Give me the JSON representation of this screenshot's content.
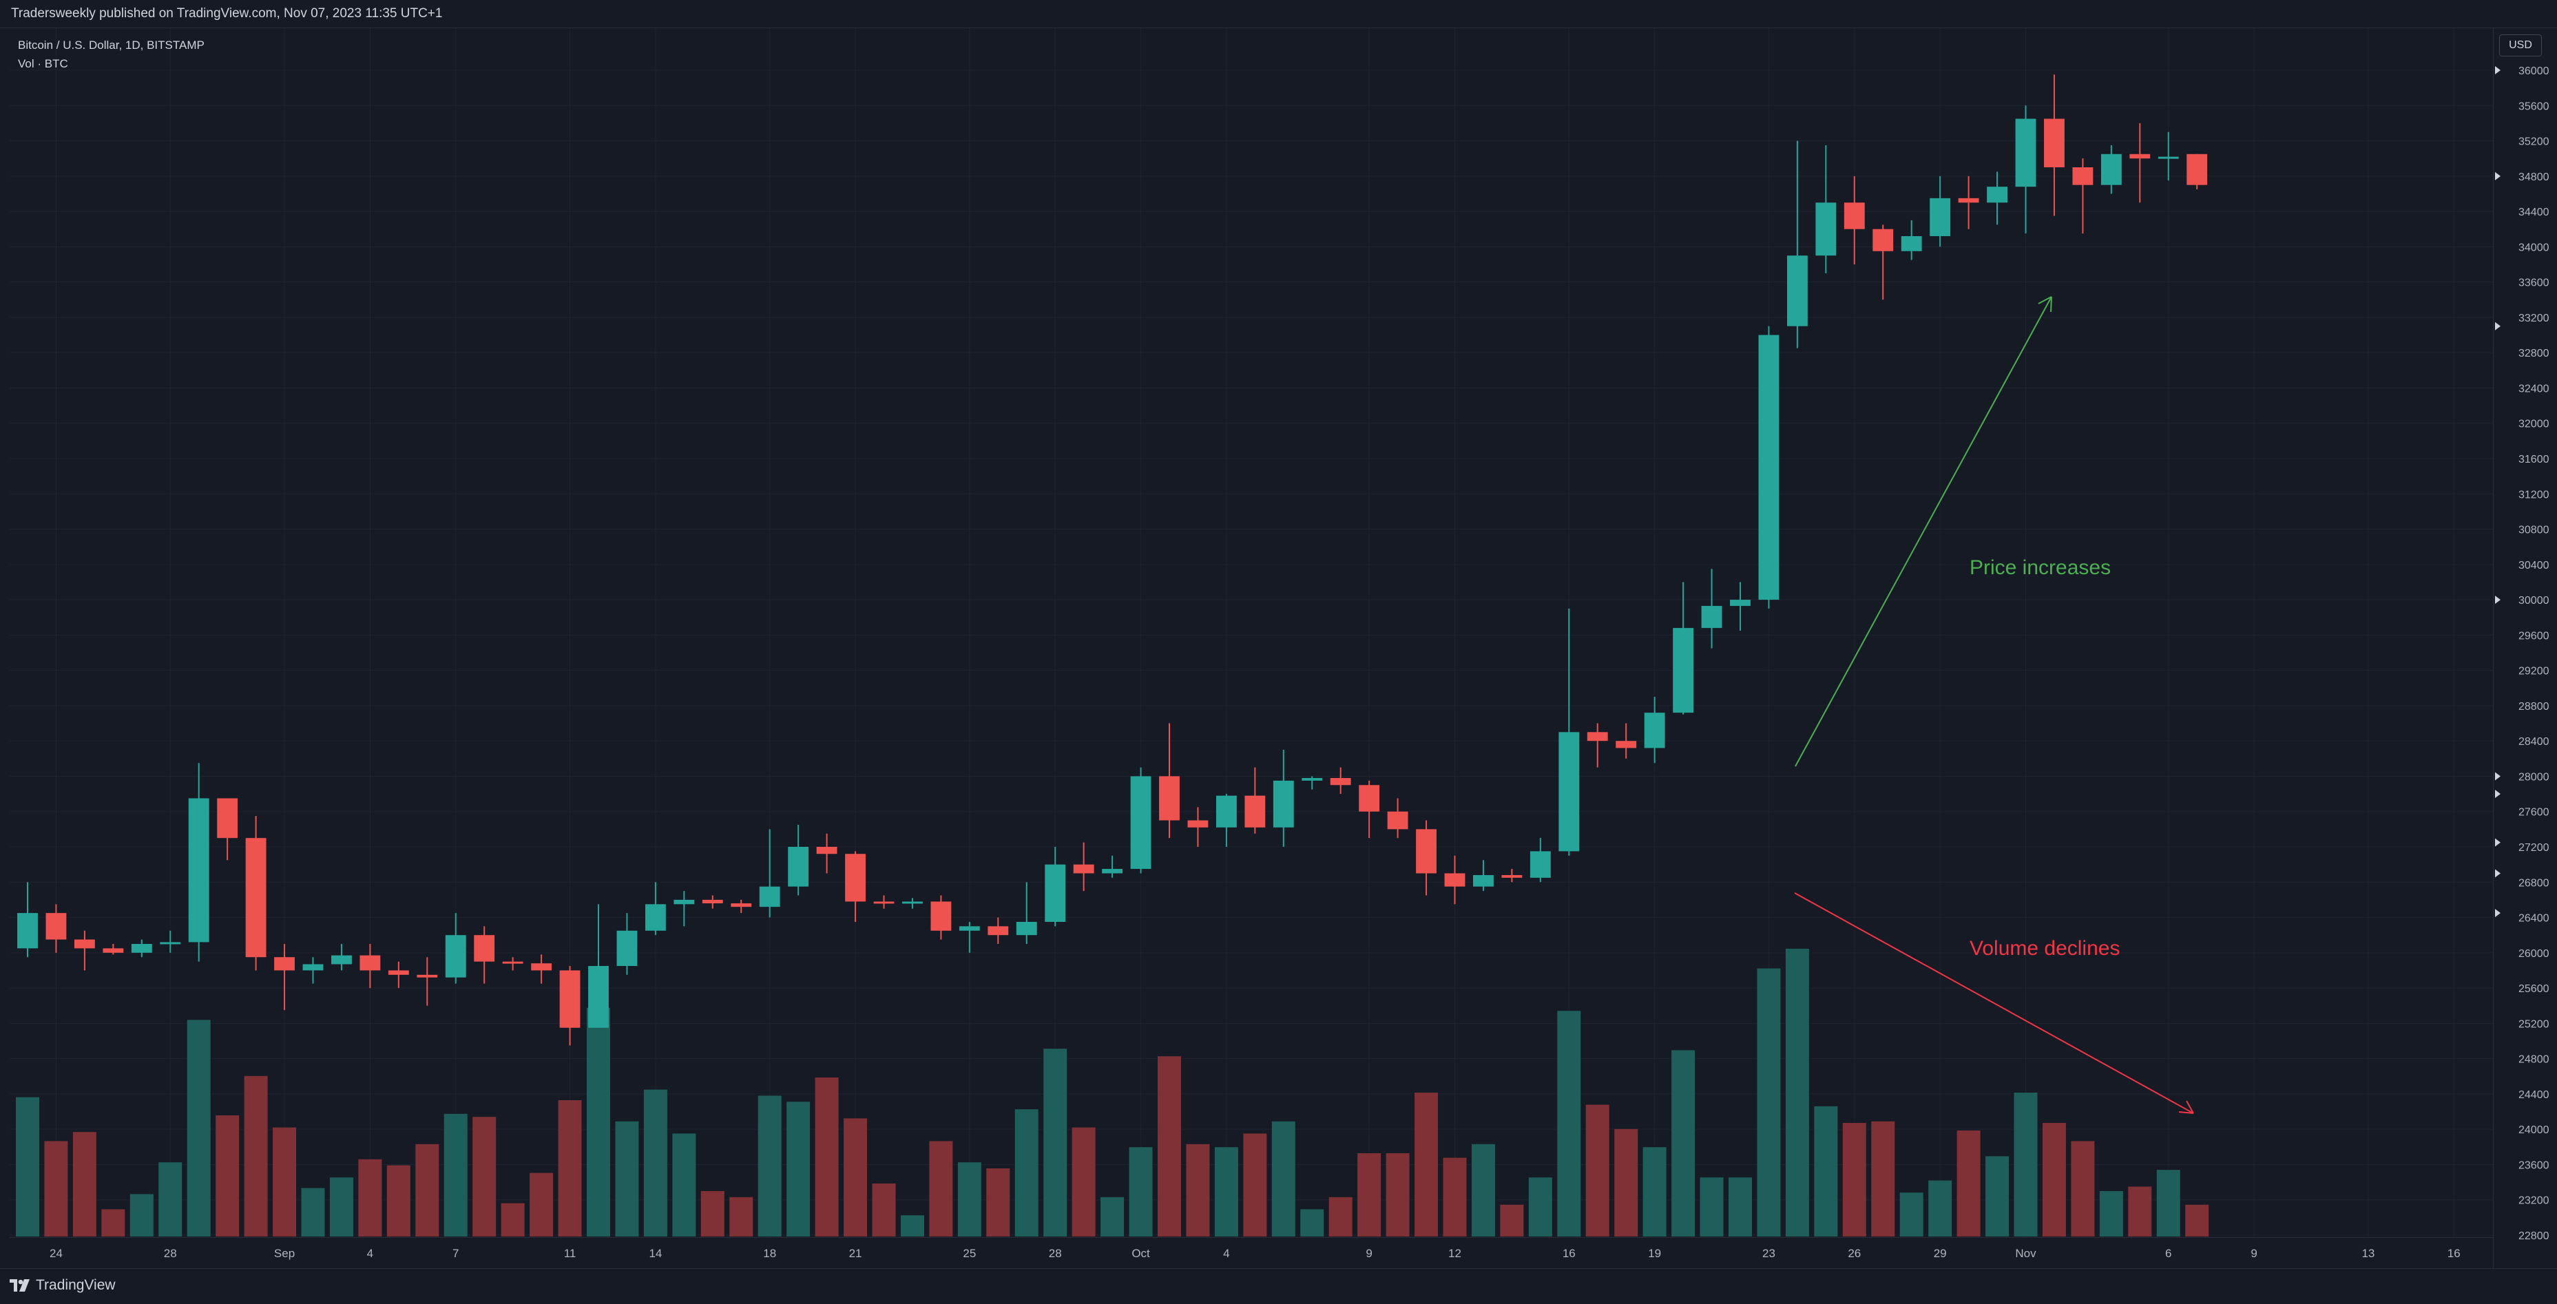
{
  "header": {
    "publisher_line": "Tradersweekly published on TradingView.com, Nov 07, 2023 11:35 UTC+1"
  },
  "symbol": {
    "title": "Bitcoin / U.S. Dollar, 1D, BITSTAMP",
    "volume_label": "Vol · BTC"
  },
  "currency_button": "USD",
  "footer": {
    "logo_text": "TradingView"
  },
  "colors": {
    "background": "#161a25",
    "up": "#26a69a",
    "down": "#ef5350",
    "volume_up": "#1e5f5b",
    "volume_down": "#7f3135",
    "grid": "#1f2330",
    "price_arrow": "#4caf50",
    "volume_arrow": "#f23645"
  },
  "annotations": [
    {
      "text": "Price increases",
      "color": "#4caf50"
    },
    {
      "text": "Volume declines",
      "color": "#f23645"
    }
  ],
  "chart_data": {
    "type": "candlestick",
    "title": "Bitcoin / U.S. Dollar, 1D, BITSTAMP",
    "y_tick_labels": [
      "22800",
      "23200",
      "23600",
      "24000",
      "24400",
      "24800",
      "25200",
      "25600",
      "26000",
      "26400",
      "26800",
      "27200",
      "27600",
      "28000",
      "28400",
      "28800",
      "29200",
      "29600",
      "30000",
      "30400",
      "30800",
      "31200",
      "31600",
      "32000",
      "32400",
      "32800",
      "33200",
      "33600",
      "34000",
      "34400",
      "34800",
      "35200",
      "35600",
      "36000"
    ],
    "ylim": [
      22800,
      36000
    ],
    "volume_max": 10000,
    "x_tick_labels": [
      {
        "label": "24",
        "date": "2023-08-24"
      },
      {
        "label": "28",
        "date": "2023-08-28"
      },
      {
        "label": "Sep",
        "date": "2023-09-01"
      },
      {
        "label": "4",
        "date": "2023-09-04"
      },
      {
        "label": "7",
        "date": "2023-09-07"
      },
      {
        "label": "11",
        "date": "2023-09-11"
      },
      {
        "label": "14",
        "date": "2023-09-14"
      },
      {
        "label": "18",
        "date": "2023-09-18"
      },
      {
        "label": "21",
        "date": "2023-09-21"
      },
      {
        "label": "25",
        "date": "2023-09-25"
      },
      {
        "label": "28",
        "date": "2023-09-28"
      },
      {
        "label": "Oct",
        "date": "2023-10-01"
      },
      {
        "label": "4",
        "date": "2023-10-04"
      },
      {
        "label": "9",
        "date": "2023-10-09"
      },
      {
        "label": "12",
        "date": "2023-10-12"
      },
      {
        "label": "16",
        "date": "2023-10-16"
      },
      {
        "label": "19",
        "date": "2023-10-19"
      },
      {
        "label": "23",
        "date": "2023-10-23"
      },
      {
        "label": "26",
        "date": "2023-10-26"
      },
      {
        "label": "29",
        "date": "2023-10-29"
      },
      {
        "label": "Nov",
        "date": "2023-11-01"
      },
      {
        "label": "6",
        "date": "2023-11-06"
      },
      {
        "label": "9",
        "date": "2023-11-09"
      },
      {
        "label": "13",
        "date": "2023-11-13"
      },
      {
        "label": "16",
        "date": "2023-11-16"
      }
    ],
    "candles": [
      {
        "date": "2023-08-23",
        "open": 26050,
        "high": 26800,
        "low": 25950,
        "close": 26450,
        "volume": 4600
      },
      {
        "date": "2023-08-24",
        "open": 26450,
        "high": 26550,
        "low": 26000,
        "close": 26150,
        "volume": 3150
      },
      {
        "date": "2023-08-25",
        "open": 26150,
        "high": 26250,
        "low": 25800,
        "close": 26050,
        "volume": 3450
      },
      {
        "date": "2023-08-26",
        "open": 26050,
        "high": 26100,
        "low": 25980,
        "close": 26000,
        "volume": 900
      },
      {
        "date": "2023-08-27",
        "open": 26000,
        "high": 26150,
        "low": 25950,
        "close": 26100,
        "volume": 1400
      },
      {
        "date": "2023-08-28",
        "open": 26100,
        "high": 26250,
        "low": 26000,
        "close": 26120,
        "volume": 2450
      },
      {
        "date": "2023-08-29",
        "open": 26120,
        "high": 28150,
        "low": 25900,
        "close": 27750,
        "volume": 7150
      },
      {
        "date": "2023-08-30",
        "open": 27750,
        "high": 27750,
        "low": 27050,
        "close": 27300,
        "volume": 4000
      },
      {
        "date": "2023-08-31",
        "open": 27300,
        "high": 27550,
        "low": 25800,
        "close": 25950,
        "volume": 5300
      },
      {
        "date": "2023-09-01",
        "open": 25950,
        "high": 26100,
        "low": 25350,
        "close": 25800,
        "volume": 3600
      },
      {
        "date": "2023-09-02",
        "open": 25800,
        "high": 25950,
        "low": 25650,
        "close": 25870,
        "volume": 1600
      },
      {
        "date": "2023-09-03",
        "open": 25870,
        "high": 26100,
        "low": 25800,
        "close": 25970,
        "volume": 1950
      },
      {
        "date": "2023-09-04",
        "open": 25970,
        "high": 26100,
        "low": 25600,
        "close": 25800,
        "volume": 2550
      },
      {
        "date": "2023-09-05",
        "open": 25800,
        "high": 25900,
        "low": 25600,
        "close": 25750,
        "volume": 2350
      },
      {
        "date": "2023-09-06",
        "open": 25750,
        "high": 25950,
        "low": 25400,
        "close": 25720,
        "volume": 3050
      },
      {
        "date": "2023-09-07",
        "open": 25720,
        "high": 26450,
        "low": 25650,
        "close": 26200,
        "volume": 4050
      },
      {
        "date": "2023-09-08",
        "open": 26200,
        "high": 26300,
        "low": 25650,
        "close": 25900,
        "volume": 3950
      },
      {
        "date": "2023-09-09",
        "open": 25900,
        "high": 25950,
        "low": 25800,
        "close": 25880,
        "volume": 1100
      },
      {
        "date": "2023-09-10",
        "open": 25880,
        "high": 25980,
        "low": 25650,
        "close": 25800,
        "volume": 2100
      },
      {
        "date": "2023-09-11",
        "open": 25800,
        "high": 25850,
        "low": 24950,
        "close": 25150,
        "volume": 4500
      },
      {
        "date": "2023-09-12",
        "open": 25150,
        "high": 26550,
        "low": 25150,
        "close": 25850,
        "volume": 7550
      },
      {
        "date": "2023-09-13",
        "open": 25850,
        "high": 26450,
        "low": 25750,
        "close": 26250,
        "volume": 3800
      },
      {
        "date": "2023-09-14",
        "open": 26250,
        "high": 26800,
        "low": 26200,
        "close": 26550,
        "volume": 4850
      },
      {
        "date": "2023-09-15",
        "open": 26550,
        "high": 26700,
        "low": 26300,
        "close": 26600,
        "volume": 3400
      },
      {
        "date": "2023-09-16",
        "open": 26600,
        "high": 26650,
        "low": 26500,
        "close": 26560,
        "volume": 1500
      },
      {
        "date": "2023-09-17",
        "open": 26560,
        "high": 26600,
        "low": 26450,
        "close": 26520,
        "volume": 1300
      },
      {
        "date": "2023-09-18",
        "open": 26520,
        "high": 27400,
        "low": 26400,
        "close": 26750,
        "volume": 4650
      },
      {
        "date": "2023-09-19",
        "open": 26750,
        "high": 27450,
        "low": 26650,
        "close": 27200,
        "volume": 4450
      },
      {
        "date": "2023-09-20",
        "open": 27200,
        "high": 27350,
        "low": 26900,
        "close": 27120,
        "volume": 5250
      },
      {
        "date": "2023-09-21",
        "open": 27120,
        "high": 27150,
        "low": 26350,
        "close": 26580,
        "volume": 3900
      },
      {
        "date": "2023-09-22",
        "open": 26580,
        "high": 26650,
        "low": 26500,
        "close": 26570,
        "volume": 1750
      },
      {
        "date": "2023-09-23",
        "open": 26570,
        "high": 26620,
        "low": 26500,
        "close": 26580,
        "volume": 700
      },
      {
        "date": "2023-09-24",
        "open": 26580,
        "high": 26650,
        "low": 26150,
        "close": 26250,
        "volume": 3150
      },
      {
        "date": "2023-09-25",
        "open": 26250,
        "high": 26350,
        "low": 26000,
        "close": 26300,
        "volume": 2450
      },
      {
        "date": "2023-09-26",
        "open": 26300,
        "high": 26400,
        "low": 26100,
        "close": 26200,
        "volume": 2250
      },
      {
        "date": "2023-09-27",
        "open": 26200,
        "high": 26800,
        "low": 26100,
        "close": 26350,
        "volume": 4200
      },
      {
        "date": "2023-09-28",
        "open": 26350,
        "high": 27200,
        "low": 26300,
        "close": 27000,
        "volume": 6200
      },
      {
        "date": "2023-09-29",
        "open": 27000,
        "high": 27250,
        "low": 26700,
        "close": 26900,
        "volume": 3600
      },
      {
        "date": "2023-09-30",
        "open": 26900,
        "high": 27100,
        "low": 26850,
        "close": 26950,
        "volume": 1300
      },
      {
        "date": "2023-10-01",
        "open": 26950,
        "high": 28100,
        "low": 26900,
        "close": 28000,
        "volume": 2950
      },
      {
        "date": "2023-10-02",
        "open": 28000,
        "high": 28600,
        "low": 27300,
        "close": 27500,
        "volume": 5950
      },
      {
        "date": "2023-10-03",
        "open": 27500,
        "high": 27650,
        "low": 27200,
        "close": 27420,
        "volume": 3050
      },
      {
        "date": "2023-10-04",
        "open": 27420,
        "high": 27800,
        "low": 27200,
        "close": 27780,
        "volume": 2950
      },
      {
        "date": "2023-10-05",
        "open": 27780,
        "high": 28100,
        "low": 27350,
        "close": 27420,
        "volume": 3400
      },
      {
        "date": "2023-10-06",
        "open": 27420,
        "high": 28300,
        "low": 27200,
        "close": 27950,
        "volume": 3800
      },
      {
        "date": "2023-10-07",
        "open": 27950,
        "high": 28000,
        "low": 27850,
        "close": 27980,
        "volume": 900
      },
      {
        "date": "2023-10-08",
        "open": 27980,
        "high": 28100,
        "low": 27800,
        "close": 27900,
        "volume": 1300
      },
      {
        "date": "2023-10-09",
        "open": 27900,
        "high": 27950,
        "low": 27300,
        "close": 27600,
        "volume": 2750
      },
      {
        "date": "2023-10-10",
        "open": 27600,
        "high": 27750,
        "low": 27300,
        "close": 27400,
        "volume": 2750
      },
      {
        "date": "2023-10-11",
        "open": 27400,
        "high": 27500,
        "low": 26650,
        "close": 26900,
        "volume": 4750
      },
      {
        "date": "2023-10-12",
        "open": 26900,
        "high": 27100,
        "low": 26550,
        "close": 26750,
        "volume": 2600
      },
      {
        "date": "2023-10-13",
        "open": 26750,
        "high": 27050,
        "low": 26700,
        "close": 26880,
        "volume": 3050
      },
      {
        "date": "2023-10-14",
        "open": 26880,
        "high": 26950,
        "low": 26800,
        "close": 26850,
        "volume": 1050
      },
      {
        "date": "2023-10-15",
        "open": 26850,
        "high": 27300,
        "low": 26800,
        "close": 27150,
        "volume": 1950
      },
      {
        "date": "2023-10-16",
        "open": 27150,
        "high": 29900,
        "low": 27100,
        "close": 28500,
        "volume": 7450
      },
      {
        "date": "2023-10-17",
        "open": 28500,
        "high": 28600,
        "low": 28100,
        "close": 28400,
        "volume": 4350
      },
      {
        "date": "2023-10-18",
        "open": 28400,
        "high": 28600,
        "low": 28200,
        "close": 28320,
        "volume": 3550
      },
      {
        "date": "2023-10-19",
        "open": 28320,
        "high": 28900,
        "low": 28150,
        "close": 28720,
        "volume": 2950
      },
      {
        "date": "2023-10-20",
        "open": 28720,
        "high": 30200,
        "low": 28700,
        "close": 29680,
        "volume": 6150
      },
      {
        "date": "2023-10-21",
        "open": 29680,
        "high": 30350,
        "low": 29450,
        "close": 29930,
        "volume": 1950
      },
      {
        "date": "2023-10-22",
        "open": 29930,
        "high": 30200,
        "low": 29650,
        "close": 30000,
        "volume": 1950
      },
      {
        "date": "2023-10-23",
        "open": 30000,
        "high": 33100,
        "low": 29900,
        "close": 33000,
        "volume": 8850
      },
      {
        "date": "2023-10-24",
        "open": 33100,
        "high": 35200,
        "low": 32850,
        "close": 33900,
        "volume": 9500
      },
      {
        "date": "2023-10-25",
        "open": 33900,
        "high": 35150,
        "low": 33700,
        "close": 34500,
        "volume": 4300
      },
      {
        "date": "2023-10-26",
        "open": 34500,
        "high": 34800,
        "low": 33800,
        "close": 34200,
        "volume": 3750
      },
      {
        "date": "2023-10-27",
        "open": 34200,
        "high": 34250,
        "low": 33400,
        "close": 33950,
        "volume": 3800
      },
      {
        "date": "2023-10-28",
        "open": 33950,
        "high": 34300,
        "low": 33850,
        "close": 34120,
        "volume": 1450
      },
      {
        "date": "2023-10-29",
        "open": 34120,
        "high": 34800,
        "low": 34000,
        "close": 34550,
        "volume": 1850
      },
      {
        "date": "2023-10-30",
        "open": 34550,
        "high": 34800,
        "low": 34200,
        "close": 34500,
        "volume": 3500
      },
      {
        "date": "2023-10-31",
        "open": 34500,
        "high": 34850,
        "low": 34250,
        "close": 34680,
        "volume": 2650
      },
      {
        "date": "2023-11-01",
        "open": 34680,
        "high": 35600,
        "low": 34150,
        "close": 35450,
        "volume": 4750
      },
      {
        "date": "2023-11-02",
        "open": 35450,
        "high": 35950,
        "low": 34350,
        "close": 34900,
        "volume": 3750
      },
      {
        "date": "2023-11-03",
        "open": 34900,
        "high": 35000,
        "low": 34150,
        "close": 34700,
        "volume": 3150
      },
      {
        "date": "2023-11-04",
        "open": 34700,
        "high": 35150,
        "low": 34600,
        "close": 35050,
        "volume": 1500
      },
      {
        "date": "2023-11-05",
        "open": 35050,
        "high": 35400,
        "low": 34500,
        "close": 35000,
        "volume": 1650
      },
      {
        "date": "2023-11-06",
        "open": 35000,
        "high": 35300,
        "low": 34750,
        "close": 35020,
        "volume": 2200
      },
      {
        "date": "2023-11-07",
        "open": 35050,
        "high": 35050,
        "low": 34650,
        "close": 34700,
        "volume": 1050
      }
    ]
  }
}
